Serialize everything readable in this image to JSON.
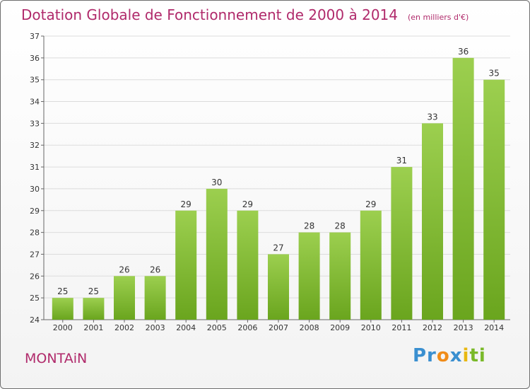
{
  "title": "Dotation Globale de Fonctionnement de 2000 à 2014",
  "unit_note": "(en milliers d'€)",
  "commune": "MONTAiN",
  "logo": {
    "text": "Proxiti",
    "parts": [
      "Pr",
      "o",
      "x",
      "i",
      "ti"
    ]
  },
  "colors": {
    "title": "#b02a6b",
    "bar_top": "#9ccf4f",
    "bar_bottom": "#6aa51e",
    "grid": "#dcdcdc"
  },
  "chart_data": {
    "type": "bar",
    "categories": [
      "2000",
      "2001",
      "2002",
      "2003",
      "2004",
      "2005",
      "2006",
      "2007",
      "2008",
      "2009",
      "2010",
      "2011",
      "2012",
      "2013",
      "2014"
    ],
    "values": [
      25,
      25,
      26,
      26,
      29,
      30,
      29,
      27,
      28,
      28,
      29,
      31,
      33,
      36,
      35
    ],
    "data_labels": [
      "25",
      "25",
      "26",
      "26",
      "29",
      "30",
      "29",
      "27",
      "28",
      "28",
      "29",
      "31",
      "33",
      "36",
      "35"
    ],
    "y_ticks": [
      "24",
      "25",
      "26",
      "27",
      "28",
      "29",
      "30",
      "31",
      "32",
      "33",
      "34",
      "35",
      "36",
      "37"
    ],
    "ylim": [
      24,
      37
    ],
    "grid": true
  }
}
